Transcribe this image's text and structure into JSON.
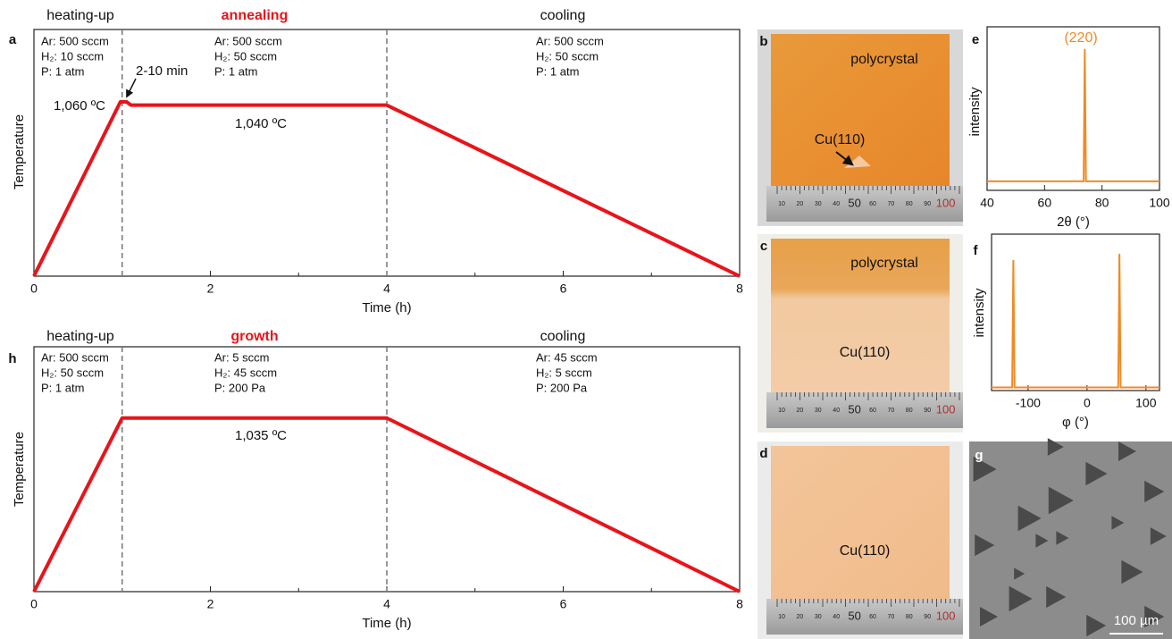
{
  "chart_data": [
    {
      "type": "line",
      "panel": "a",
      "xlabel": "Time (h)",
      "ylabel": "Temperature",
      "x": [
        0,
        0.98,
        1.05,
        1.1,
        4,
        8
      ],
      "values": [
        0,
        1060,
        1060,
        1040,
        1040,
        0
      ],
      "color": "#e8141a",
      "xlim": [
        0,
        8
      ],
      "xticks": [
        0,
        2,
        4,
        6,
        8
      ],
      "xminor": [
        1,
        3,
        5,
        7
      ],
      "ylim": [
        0,
        1500
      ],
      "boundaries": [
        1,
        4
      ],
      "phases": [
        {
          "label": "heating-up",
          "conditions": [
            "Ar: 500 sccm",
            "H₂: 10 sccm",
            "P: 1 atm"
          ]
        },
        {
          "label": "annealing",
          "conditions": [
            "Ar: 500 sccm",
            "H₂: 50 sccm",
            "P: 1 atm"
          ]
        },
        {
          "label": "cooling",
          "conditions": [
            "Ar: 500 sccm",
            "H₂: 50 sccm",
            "P: 1 atm"
          ]
        }
      ],
      "annotations": [
        "1,060 ºC",
        "2-10 min",
        "1,040 ºC"
      ]
    },
    {
      "type": "line",
      "panel": "h",
      "xlabel": "Time (h)",
      "ylabel": "Temperature",
      "x": [
        0,
        1,
        4,
        8
      ],
      "values": [
        0,
        1035,
        1035,
        0
      ],
      "color": "#e8141a",
      "xlim": [
        0,
        8
      ],
      "xticks": [
        0,
        2,
        4,
        6,
        8
      ],
      "xminor": [
        1,
        3,
        5,
        7
      ],
      "ylim": [
        0,
        1460
      ],
      "boundaries": [
        1,
        4
      ],
      "phases": [
        {
          "label": "heating-up",
          "conditions": [
            "Ar: 500 sccm",
            "H₂: 50 sccm",
            "P: 1 atm"
          ]
        },
        {
          "label": "growth",
          "conditions": [
            "Ar: 5 sccm",
            "H₂: 45 sccm",
            "P: 200 Pa"
          ]
        },
        {
          "label": "cooling",
          "conditions": [
            "Ar: 45 sccm",
            "H₂: 5 sccm",
            "P: 200 Pa"
          ]
        }
      ],
      "annotations": [
        "1,035 ºC"
      ]
    },
    {
      "type": "line",
      "panel": "e",
      "xlabel": "2θ (°)",
      "ylabel": "intensity",
      "x": [
        40,
        73.6,
        74,
        74.4,
        100
      ],
      "values": [
        0.055,
        0.055,
        0.86,
        0.055,
        0.055
      ],
      "color": "#f08a24",
      "xlim": [
        40,
        100
      ],
      "xticks": [
        40,
        60,
        80,
        100
      ],
      "ylim": [
        0,
        1
      ],
      "annotations": [
        "(220)"
      ]
    },
    {
      "type": "line",
      "panel": "f",
      "xlabel": "φ (°)",
      "ylabel": "intensity",
      "x": [
        -162,
        -127,
        -125,
        -123,
        53,
        55,
        57,
        123
      ],
      "values": [
        0.02,
        0.02,
        0.83,
        0.02,
        0.02,
        0.87,
        0.02,
        0.02
      ],
      "color": "#f08a24",
      "xlim": [
        -162,
        123
      ],
      "xticks": [
        -100,
        0,
        100
      ],
      "ylim": [
        0,
        1
      ]
    }
  ],
  "photos": [
    {
      "panel": "b",
      "labels": [
        "polycrystal",
        "Cu(110)"
      ]
    },
    {
      "panel": "c",
      "labels": [
        "polycrystal",
        "Cu(110)"
      ]
    },
    {
      "panel": "d",
      "labels": [
        "Cu(110)"
      ]
    },
    {
      "panel": "g",
      "scale_bar": "100 µm"
    }
  ],
  "ruler_labels": [
    "10",
    "20",
    "30",
    "40",
    "50",
    "60",
    "70",
    "80",
    "90",
    "100"
  ]
}
